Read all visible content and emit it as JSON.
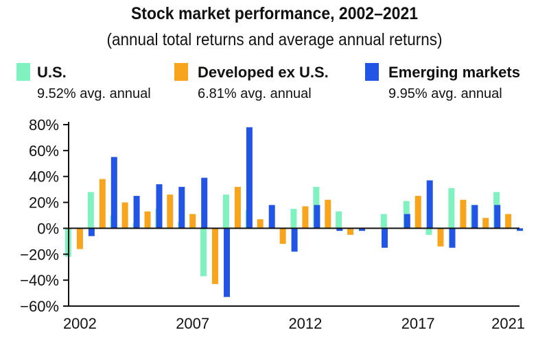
{
  "chart_data": {
    "type": "bar",
    "title": "Stock market performance, 2002–2021",
    "subtitle": "(annual total returns and average annual returns)",
    "categories": [
      "2002",
      "2003",
      "2004",
      "2005",
      "2006",
      "2007",
      "2008",
      "2009",
      "2010",
      "2011",
      "2012",
      "2013",
      "2014",
      "2015",
      "2016",
      "2017",
      "2018",
      "2019",
      "2020",
      "2021"
    ],
    "x_tick_labels": [
      "2002",
      "2007",
      "2012",
      "2017",
      "2021"
    ],
    "series": [
      {
        "name": "U.S.",
        "avg_label": "9.52% avg. annual",
        "color": "#7ff2bf",
        "values": [
          -22,
          28,
          10,
          4,
          15,
          5,
          -37,
          26,
          14,
          1,
          15,
          32,
          13,
          0,
          11,
          21,
          -5,
          31,
          18,
          28
        ]
      },
      {
        "name": "Developed ex U.S.",
        "avg_label": "6.81% avg. annual",
        "color": "#f8a41c",
        "values": [
          -16,
          38,
          20,
          13,
          26,
          11,
          -43,
          32,
          7,
          -12,
          17,
          22,
          -5,
          0,
          0,
          25,
          -14,
          22,
          8,
          11
        ]
      },
      {
        "name": "Emerging markets",
        "avg_label": "9.95% avg. annual",
        "color": "#2255e6",
        "values": [
          -6,
          55,
          25,
          34,
          32,
          39,
          -53,
          78,
          18,
          -18,
          18,
          -2,
          -2,
          -15,
          11,
          37,
          -15,
          18,
          18,
          -2
        ]
      }
    ],
    "xlabel": "",
    "ylabel": "",
    "ylim": [
      -60,
      80
    ],
    "y_ticks": [
      80,
      60,
      40,
      20,
      0,
      -20,
      -40,
      -60
    ],
    "y_tick_labels": [
      "80%",
      "60%",
      "40%",
      "20%",
      "0%",
      "−20%",
      "−40%",
      "−60%"
    ],
    "grid": false,
    "legend_position": "top"
  }
}
